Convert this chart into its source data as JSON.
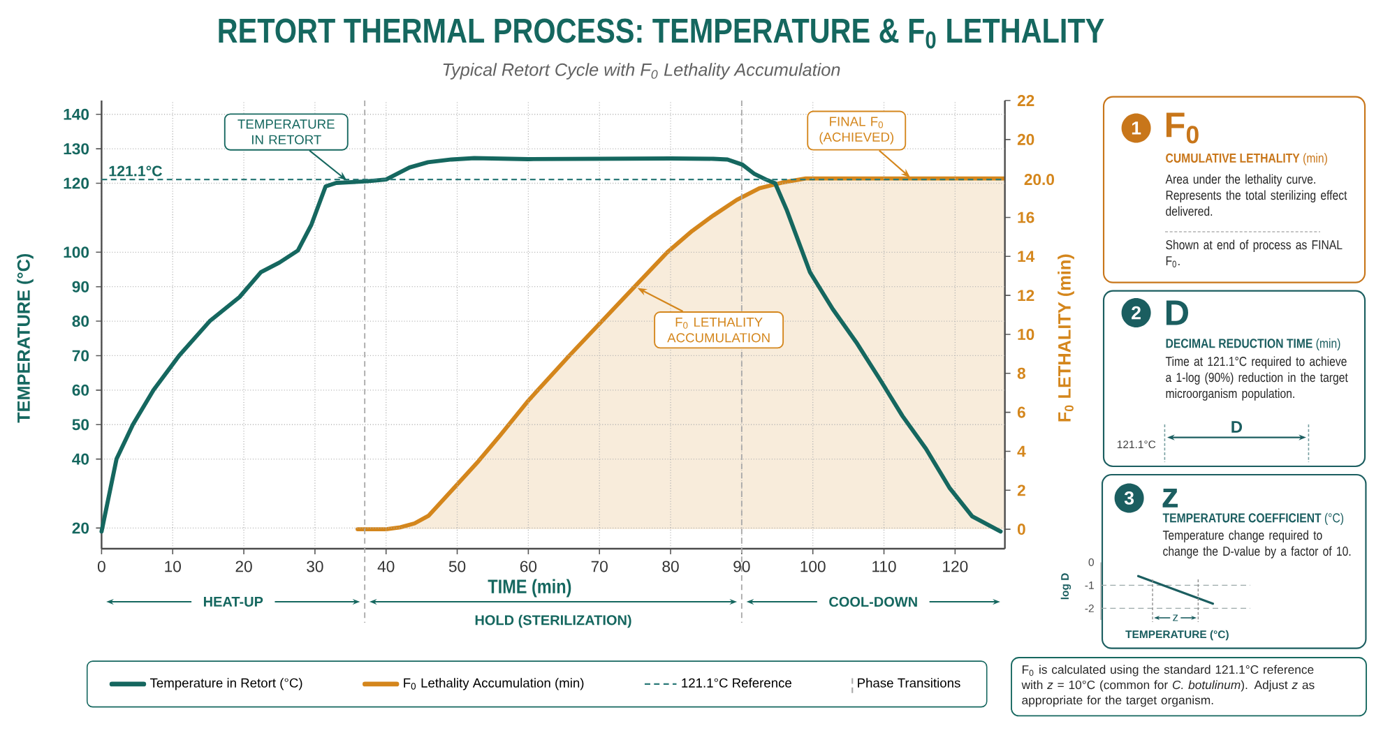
{
  "chart_data": [
    {
      "type": "line",
      "title": "RETORT THERMAL PROCESS: TEMPERATURE & F$_{0}$ LETHALITY",
      "subtitle": "Typical Retort Cycle with F$_{0}$ Lethality Accumulation",
      "xlabel": "TIME (min)",
      "ylabel": "TEMPERATURE (°C)",
      "y2label": "F$_{0}$ LETHALITY (min)",
      "xlim": [
        0,
        127
      ],
      "xticks": [
        0,
        10,
        20,
        30,
        40,
        50,
        60,
        70,
        80,
        90,
        100,
        110,
        120
      ],
      "ylim": [
        14,
        144
      ],
      "yticks": [
        20,
        40,
        50,
        60,
        70,
        80,
        90,
        100,
        120,
        130,
        140
      ],
      "y2lim": [
        -1,
        22
      ],
      "y2ticks": [
        0,
        2,
        4,
        6,
        8,
        10,
        12,
        14,
        16,
        20,
        22
      ],
      "series": [
        {
          "name": "Temperature in Retort (°C)",
          "color": "#15675f",
          "x": [
            0,
            2.1,
            4.4,
            7.3,
            10.9,
            15.2,
            19.4,
            22.4,
            25,
            27.6,
            29.5,
            31.5,
            33,
            34.8,
            37.4,
            40,
            43.3,
            45.9,
            49.2,
            52.4,
            60,
            70,
            80,
            86,
            88,
            90.1,
            91.8,
            93.4,
            94.7,
            96.3,
            99.6,
            102.8,
            106.1,
            109.4,
            112.6,
            115.9,
            119.2,
            122.4,
            126.4
          ],
          "values": [
            19,
            40,
            50,
            60,
            70,
            80,
            87,
            94.2,
            97,
            100.5,
            108,
            119.1,
            120.1,
            120.3,
            120.6,
            121.1,
            124.6,
            126.1,
            126.9,
            127.3,
            127,
            127.1,
            127.2,
            127.1,
            126.9,
            125.4,
            122.7,
            121.1,
            120,
            112.4,
            94.2,
            83.5,
            73.9,
            63.2,
            52.5,
            43,
            31.7,
            23.4,
            19
          ]
        },
        {
          "name": "F$_{0}$ Lethality Accumulation (min)",
          "type": "area",
          "axis": "y2",
          "color": "#d4861c",
          "x": [
            36,
            40,
            42,
            44,
            46,
            48,
            50,
            53,
            56,
            60,
            66,
            73,
            79.5,
            83,
            86,
            89.3,
            92.5,
            95.8,
            99,
            127
          ],
          "values": [
            0,
            0,
            0.1,
            0.3,
            0.7,
            1.5,
            2.3,
            3.5,
            4.8,
            6.6,
            9,
            11.7,
            14.2,
            15.3,
            16.1,
            16.9,
            17.5,
            17.8,
            18,
            18
          ]
        }
      ],
      "ref_lines": [
        {
          "axis": "y",
          "value": 121.1,
          "label": "121.1°C Reference",
          "color": "#2b7a78",
          "line_style": "dashed"
        },
        {
          "axis": "x",
          "value": 37,
          "label": "Phase Transitions",
          "color": "#aaaaaa",
          "line_style": "dashed"
        },
        {
          "axis": "x",
          "value": 90,
          "color": "#aaaaaa",
          "line_style": "dashed"
        }
      ],
      "annotations": [
        {
          "text": "TEMPERATURE IN RETORT",
          "x": 34.8,
          "y": 120.3
        },
        {
          "text": "121.1°C",
          "x": 0,
          "y": 121.1
        },
        {
          "text": "F$_{0}$ LETHALITY ACCUMULATION",
          "x": 75,
          "y": 90
        },
        {
          "text": "FINAL F$_{0}$ (ACHIEVED)",
          "x": 114,
          "y": 121.1
        },
        "F$_{0}$ is calculated using the standard 121.1°C reference with *z* = 10°C (common for *C. botulinum*). Adjust *z* as appropriate for the target organism.",
        "20.0",
        "HEAT-UP",
        "HOLD (STERILIZATION)",
        "COOL-DOWN"
      ],
      "grid": true,
      "legend": "bottom"
    },
    {
      "type": "other",
      "title": "F$_{0}$",
      "subtitle": "**CUMULATIVE LETHALITY** (min)",
      "color": "#c8761a",
      "annotations": [
        "1",
        "Area under the lethality curve. Represents the total sterilizing effect delivered.",
        "Shown at end of process as FINAL F$_{0}$."
      ]
    },
    {
      "type": "other",
      "title": "D",
      "subtitle": "**DECIMAL REDUCTION TIME** (min)",
      "color": "#1b5e60",
      "annotations": [
        "2",
        "Time at 121.1°C required to achieve a 1-log (90%) reduction in the target microorganism population.",
        "121.1°C",
        "D"
      ]
    },
    {
      "type": "line",
      "title": "z",
      "subtitle": "**TEMPERATURE COEFFICIENT** (°C)",
      "color": "#1b5e60",
      "categories": [
        null,
        null
      ],
      "values": [
        -0.6,
        -1.8
      ],
      "ylim": [
        -2.5,
        0
      ],
      "yticks": [
        0,
        -1,
        -2
      ],
      "xlabel": "TEMPERATURE (°C)",
      "ylabel": "log D",
      "ref_lines": [
        {
          "axis": "y",
          "value": -1,
          "color": "#9aa9a9",
          "line_style": "dashed"
        },
        {
          "axis": "y",
          "value": -2,
          "color": "#9aa9a9",
          "line_style": "dashed"
        }
      ],
      "annotations": [
        "3",
        "Temperature change required to change the D-value by a factor of 10.",
        "z"
      ]
    }
  ]
}
